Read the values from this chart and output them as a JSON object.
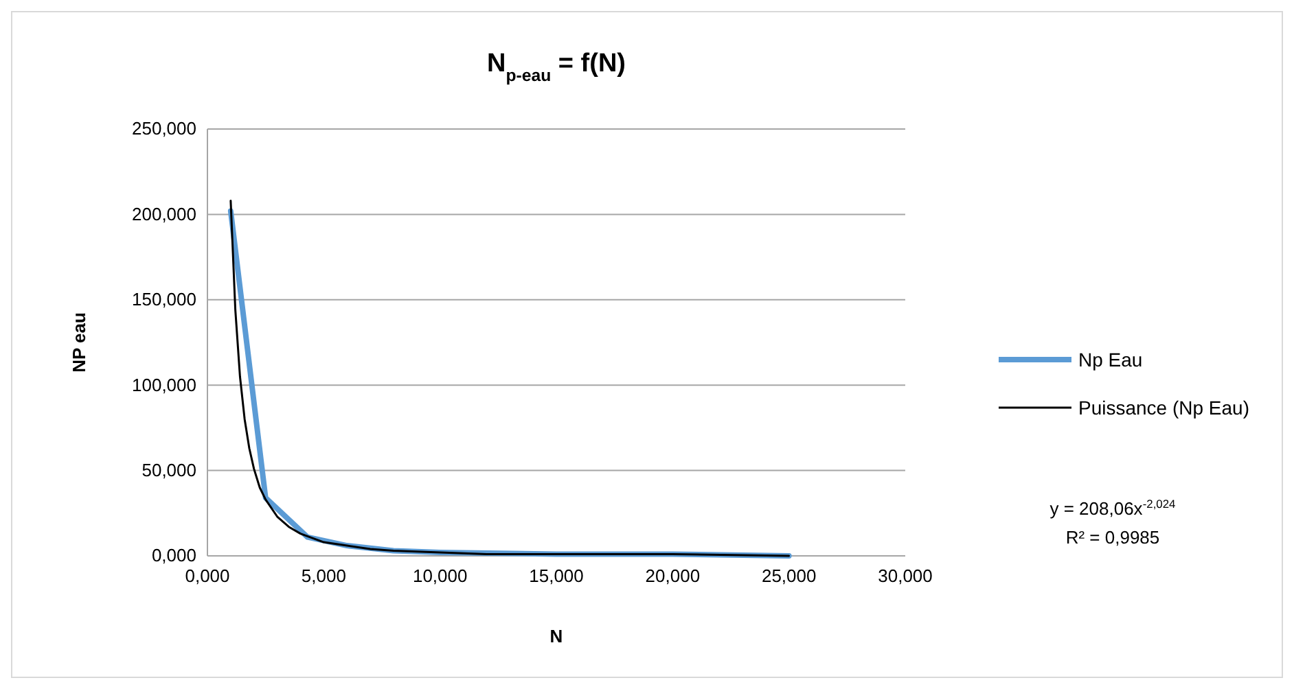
{
  "chart_data": {
    "type": "line",
    "title": "N$_{p-eau}$ = f(N)",
    "xlabel": "N",
    "ylabel": "NP eau",
    "xlim": [
      0,
      30
    ],
    "ylim": [
      0,
      250
    ],
    "xticks": [
      {
        "value": 0,
        "label": "0,000"
      },
      {
        "value": 5,
        "label": "5,000"
      },
      {
        "value": 10,
        "label": "10,000"
      },
      {
        "value": 15,
        "label": "15,000"
      },
      {
        "value": 20,
        "label": "20,000"
      },
      {
        "value": 25,
        "label": "25,000"
      },
      {
        "value": 30,
        "label": "30,000"
      }
    ],
    "yticks": [
      {
        "value": 0,
        "label": "0,000"
      },
      {
        "value": 50,
        "label": "50,000"
      },
      {
        "value": 100,
        "label": "100,000"
      },
      {
        "value": 150,
        "label": "150,000"
      },
      {
        "value": 200,
        "label": "200,000"
      },
      {
        "value": 250,
        "label": "250,000"
      }
    ],
    "grid": "y",
    "legend": "right",
    "marker": "none",
    "series": [
      {
        "name": "Np Eau",
        "color": "#5b9bd5",
        "x": [
          1,
          2.5,
          4.3,
          6,
          8,
          10,
          15,
          20,
          25
        ],
        "values": [
          202,
          34,
          11,
          6,
          3,
          2,
          1,
          1,
          0
        ]
      },
      {
        "name": "Puissance (Np Eau)",
        "color": "#000000",
        "x": [
          1,
          1.2,
          1.4,
          1.6,
          1.8,
          2,
          2.25,
          2.5,
          3,
          3.5,
          4,
          5,
          6,
          7,
          8,
          10,
          12,
          15,
          20,
          25
        ],
        "values": [
          208,
          144,
          105,
          80,
          63,
          51,
          40,
          33,
          23,
          17,
          13,
          8,
          6,
          4,
          3,
          2,
          1,
          1,
          1,
          0
        ]
      }
    ],
    "annotations": [
      "y = 208,06x$^{-2,024}$",
      "R² = 0,9985"
    ]
  }
}
